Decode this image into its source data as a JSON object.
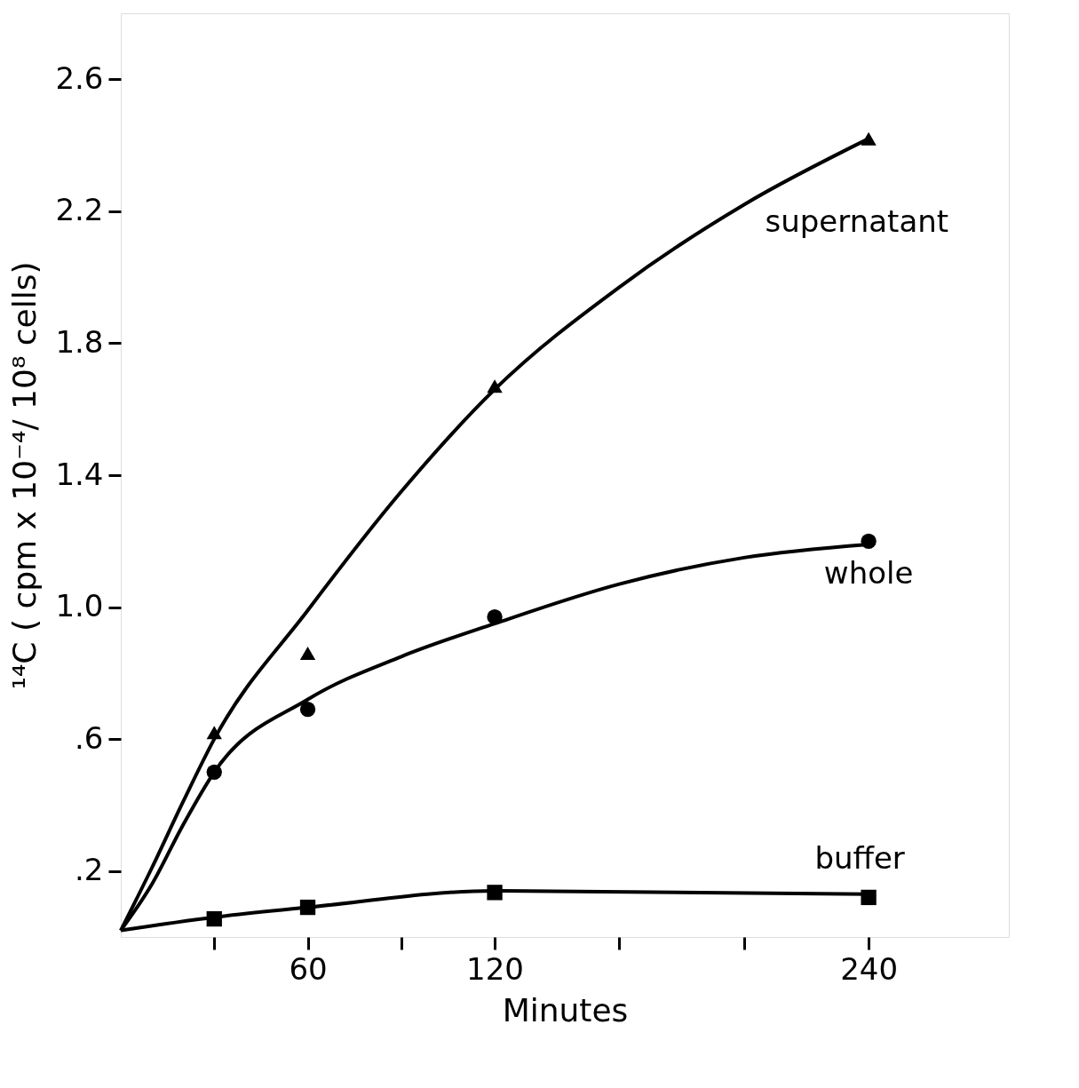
{
  "chart_data": {
    "type": "scatter",
    "xlabel": "Minutes",
    "ylabel": "¹⁴C  ( cpm x 10⁻⁴/ 10⁸ cells)",
    "xlim": [
      0,
      285
    ],
    "ylim": [
      0,
      2.8
    ],
    "xticks": [
      {
        "value": 30,
        "label": null
      },
      60,
      {
        "value": 90,
        "label": null
      },
      120,
      {
        "value": 160,
        "label": null
      },
      {
        "value": 200,
        "label": null
      },
      240
    ],
    "yticks": [
      {
        "value": 0.2,
        "label": ".2"
      },
      {
        "value": 0.6,
        "label": ".6"
      },
      {
        "value": 1.0,
        "label": "1.0"
      },
      1.4,
      1.8,
      2.2,
      2.6
    ],
    "grid": false,
    "series": [
      {
        "type": "line",
        "color": "#000000",
        "marker": "none",
        "line_style": "solid",
        "x": [
          0,
          10,
          20,
          30,
          60,
          90,
          120,
          160,
          200,
          240
        ],
        "values": [
          0.02,
          0.21,
          0.41,
          0.6,
          0.99,
          1.35,
          1.66,
          1.97,
          2.22,
          2.42
        ]
      },
      {
        "type": "line",
        "color": "#000000",
        "marker": "none",
        "line_style": "solid",
        "x": [
          0,
          10,
          20,
          30,
          60,
          90,
          120,
          160,
          200,
          240
        ],
        "values": [
          0.02,
          0.16,
          0.34,
          0.5,
          0.72,
          0.85,
          0.95,
          1.07,
          1.15,
          1.19
        ]
      },
      {
        "type": "line",
        "color": "#000000",
        "marker": "none",
        "line_style": "solid",
        "x": [
          0,
          30,
          60,
          120,
          240
        ],
        "values": [
          0.02,
          0.06,
          0.09,
          0.14,
          0.13
        ]
      },
      {
        "name": "supernatant",
        "color": "#000000",
        "marker": "triangle",
        "x": [
          30,
          60,
          120,
          240
        ],
        "values": [
          0.62,
          0.86,
          1.67,
          2.42
        ]
      },
      {
        "name": "whole",
        "color": "#000000",
        "marker": "circle",
        "x": [
          30,
          60,
          120,
          240
        ],
        "values": [
          0.5,
          0.69,
          0.97,
          1.2
        ]
      },
      {
        "name": "buffer",
        "color": "#000000",
        "marker": "square",
        "x": [
          30,
          60,
          120,
          240
        ],
        "values": [
          0.055,
          0.09,
          0.135,
          0.12
        ]
      }
    ]
  }
}
